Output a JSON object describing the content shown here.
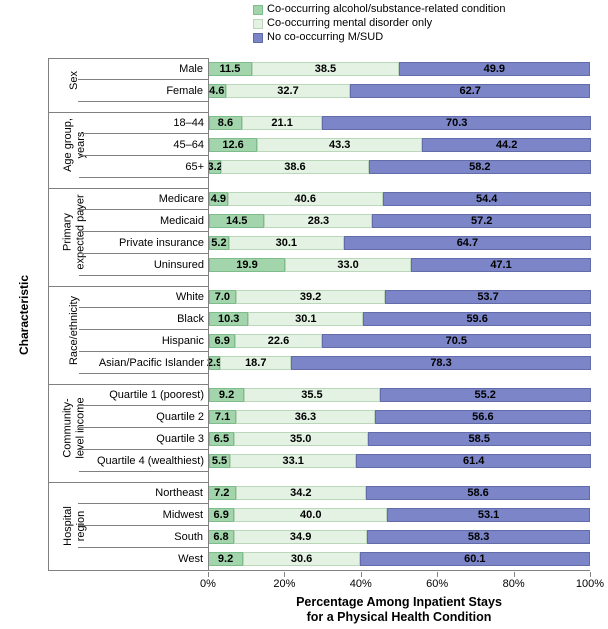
{
  "legend": {
    "items": [
      {
        "label": "Co-occurring alcohol/substance-related condition",
        "color_key": "alcohol"
      },
      {
        "label": "Co-occurring mental disorder only",
        "color_key": "mental"
      },
      {
        "label": "No co-occurring M/SUD",
        "color_key": "none"
      }
    ]
  },
  "colors": {
    "alcohol": "#a2d5ab",
    "alcohol_border": "#7fbc8c",
    "mental": "#e3f2e3",
    "mental_border": "#bcd6bc",
    "none": "#7b85c7",
    "none_border": "#626ca9",
    "axis_line": "#808080"
  },
  "y_axis_title": "Characteristic",
  "x_axis": {
    "tick_labels": [
      "0%",
      "20%",
      "40%",
      "60%",
      "80%",
      "100%"
    ],
    "tick_values": [
      0,
      20,
      40,
      60,
      80,
      100
    ],
    "title_line1": "Percentage Among Inpatient Stays",
    "title_line2": "for a Physical Health Condition"
  },
  "chart_data": {
    "type": "bar",
    "subtype": "horizontal-stacked",
    "stacked": true,
    "xlim": [
      0,
      100
    ],
    "grid": false,
    "legend_position": "top",
    "series_names": [
      "Co-occurring alcohol/substance-related condition",
      "Co-occurring mental disorder only",
      "No co-occurring M/SUD"
    ],
    "xlabel": "Percentage Among Inpatient Stays for a Physical Health Condition",
    "ylabel": "Characteristic",
    "groups": [
      {
        "label": "Sex",
        "rows": [
          {
            "label": "Male",
            "values": [
              "11.5",
              "38.5",
              "49.9"
            ]
          },
          {
            "label": "Female",
            "values": [
              "4.6",
              "32.7",
              "62.7"
            ]
          }
        ]
      },
      {
        "label": "Age group,\nyears",
        "rows": [
          {
            "label": "18–44",
            "values": [
              "8.6",
              "21.1",
              "70.3"
            ]
          },
          {
            "label": "45–64",
            "values": [
              "12.6",
              "43.3",
              "44.2"
            ]
          },
          {
            "label": "65+",
            "values": [
              "3.2",
              "38.6",
              "58.2"
            ]
          }
        ]
      },
      {
        "label": "Primary\nexpected payer",
        "rows": [
          {
            "label": "Medicare",
            "values": [
              "4.9",
              "40.6",
              "54.4"
            ]
          },
          {
            "label": "Medicaid",
            "values": [
              "14.5",
              "28.3",
              "57.2"
            ]
          },
          {
            "label": "Private insurance",
            "values": [
              "5.2",
              "30.1",
              "64.7"
            ]
          },
          {
            "label": "Uninsured",
            "values": [
              "19.9",
              "33.0",
              "47.1"
            ]
          }
        ]
      },
      {
        "label": "Race/ethnicity",
        "rows": [
          {
            "label": "White",
            "values": [
              "7.0",
              "39.2",
              "53.7"
            ]
          },
          {
            "label": "Black",
            "values": [
              "10.3",
              "30.1",
              "59.6"
            ]
          },
          {
            "label": "Hispanic",
            "values": [
              "6.9",
              "22.6",
              "70.5"
            ]
          },
          {
            "label": "Asian/Pacific Islander",
            "values": [
              "2.9",
              "18.7",
              "78.3"
            ]
          }
        ]
      },
      {
        "label": "Community-\nlevel income",
        "rows": [
          {
            "label": "Quartile 1 (poorest)",
            "values": [
              "9.2",
              "35.5",
              "55.2"
            ]
          },
          {
            "label": "Quartile 2",
            "values": [
              "7.1",
              "36.3",
              "56.6"
            ]
          },
          {
            "label": "Quartile 3",
            "values": [
              "6.5",
              "35.0",
              "58.5"
            ]
          },
          {
            "label": "Quartile 4 (wealthiest)",
            "values": [
              "5.5",
              "33.1",
              "61.4"
            ]
          }
        ]
      },
      {
        "label": "Hospital\nregion",
        "rows": [
          {
            "label": "Northeast",
            "values": [
              "7.2",
              "34.2",
              "58.6"
            ]
          },
          {
            "label": "Midwest",
            "values": [
              "6.9",
              "40.0",
              "53.1"
            ]
          },
          {
            "label": "South",
            "values": [
              "6.8",
              "34.9",
              "58.3"
            ]
          },
          {
            "label": "West",
            "values": [
              "9.2",
              "30.6",
              "60.1"
            ]
          }
        ]
      }
    ]
  }
}
